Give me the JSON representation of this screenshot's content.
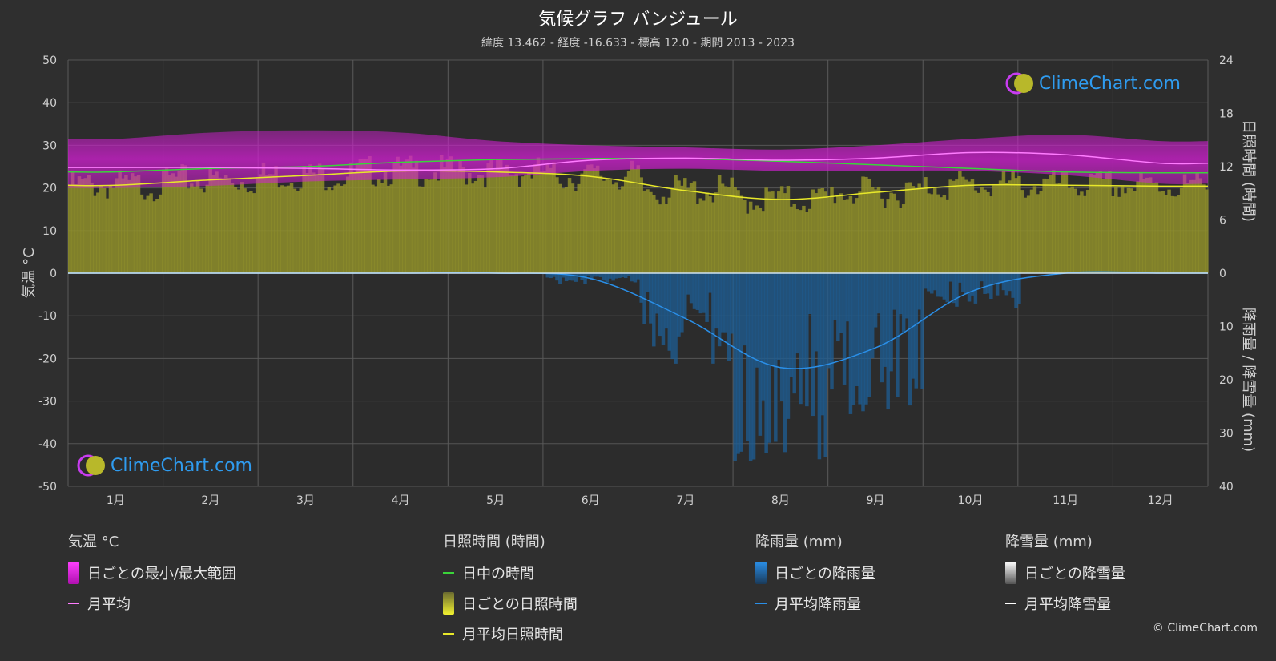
{
  "header": {
    "title": "気候グラフ バンジュール",
    "subtitle": "緯度 13.462 - 経度 -16.633 - 標高 12.0 - 期間 2013 - 2023"
  },
  "logo": {
    "text": "ClimeChart.com"
  },
  "copyright": "© ClimeChart.com",
  "legend": {
    "temperature": {
      "heading": "気温 °C",
      "range_label": "日ごとの最小/最大範囲",
      "avg_label": "月平均"
    },
    "sunshine": {
      "heading": "日照時間 (時間)",
      "daylight_label": "日中の時間",
      "daily_label": "日ごとの日照時間",
      "avg_label": "月平均日照時間"
    },
    "rain": {
      "heading": "降雨量 (mm)",
      "daily_label": "日ごとの降雨量",
      "avg_label": "月平均降雨量"
    },
    "snow": {
      "heading": "降雪量 (mm)",
      "daily_label": "日ごとの降雪量",
      "avg_label": "月平均降雪量"
    }
  },
  "colors": {
    "background": "#2f2f2f",
    "temp_range": "#d21fd2",
    "temp_avg": "#ff7cff",
    "daylight": "#3ad43a",
    "sunshine_fill": "#8f8f2a",
    "sunshine_avg": "#e8e82a",
    "rain_fill": "#1d5d94",
    "rain_avg": "#2a8fe8",
    "snow_avg": "#ffffff",
    "logo_text": "#2f9cf0"
  },
  "chart_data": {
    "type": "line",
    "categories": [
      "1月",
      "2月",
      "3月",
      "4月",
      "5月",
      "6月",
      "7月",
      "8月",
      "9月",
      "10月",
      "11月",
      "12月"
    ],
    "left_axis": {
      "label": "気温 °C",
      "ylim": [
        -50,
        50
      ],
      "ticks": [
        "50",
        "40",
        "30",
        "20",
        "10",
        "0",
        "-10",
        "-20",
        "-30",
        "-40",
        "-50"
      ]
    },
    "right_axis_top": {
      "label": "日照時間 (時間)",
      "ylim": [
        0,
        24
      ],
      "ticks": [
        "24",
        "18",
        "12",
        "6",
        "0"
      ]
    },
    "right_axis_bottom": {
      "label": "降雨量 / 降雪量 (mm)",
      "ylim": [
        0,
        40
      ],
      "ticks": [
        "0",
        "10",
        "20",
        "30",
        "40"
      ]
    },
    "grid": true,
    "series": [
      {
        "name": "日中の時間",
        "axis": "sunshine",
        "values": [
          11.4,
          11.8,
          12.0,
          12.5,
          12.8,
          12.9,
          12.9,
          12.6,
          12.2,
          11.8,
          11.4,
          11.3
        ]
      },
      {
        "name": "月平均日照時間",
        "axis": "sunshine",
        "values": [
          9.9,
          10.5,
          11.0,
          11.5,
          11.4,
          10.9,
          9.3,
          8.3,
          9.1,
          9.9,
          9.9,
          9.8
        ]
      },
      {
        "name": "月平均",
        "axis": "temperature",
        "values": [
          24.8,
          24.8,
          24.6,
          24.2,
          24.5,
          26.5,
          27.0,
          26.5,
          27.0,
          28.3,
          27.8,
          25.8
        ]
      },
      {
        "name": "月平均降雨量",
        "axis": "rain",
        "values": [
          0.0,
          0.0,
          0.0,
          0.0,
          0.0,
          1.0,
          8.5,
          17.7,
          14.0,
          3.5,
          0.0,
          0.0
        ]
      },
      {
        "name": "月平均降雪量",
        "axis": "rain",
        "values": [
          0,
          0,
          0,
          0,
          0,
          0,
          0,
          0,
          0,
          0,
          0,
          0
        ]
      }
    ],
    "temp_range": {
      "name": "日ごとの最小/最大範囲",
      "min": [
        20.0,
        20.5,
        21.5,
        22.0,
        22.5,
        24.0,
        24.5,
        24.0,
        24.0,
        24.0,
        23.0,
        21.0
      ],
      "max": [
        31.5,
        33.0,
        33.5,
        33.0,
        31.0,
        30.0,
        29.5,
        29.0,
        30.0,
        31.5,
        32.5,
        31.0
      ]
    }
  }
}
